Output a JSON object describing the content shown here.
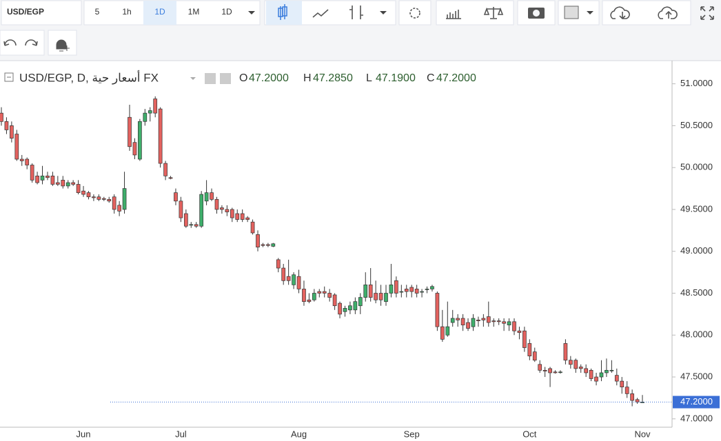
{
  "toolbar": {
    "symbol": "USD/EGP",
    "intervals": [
      "5",
      "1h",
      "1D",
      "1M"
    ],
    "interval_menu": "1D"
  },
  "chart_data": {
    "type": "candlestick",
    "title": "USD/EGP, D, أسعار حية FX",
    "legend": [
      {
        "key": "O",
        "value": "47.2000"
      },
      {
        "key": "H",
        "value": "47.2850"
      },
      {
        "key": "L",
        "value": "47.1900"
      },
      {
        "key": "C",
        "value": "47.2000"
      }
    ],
    "up_color": "#3fae6b",
    "down_color": "#e3625f",
    "grid": false,
    "ylim": [
      46.9,
      51.26
    ],
    "yticks": [
      {
        "value": 47,
        "label": "47.0000"
      },
      {
        "value": 47.5,
        "label": "47.5000"
      },
      {
        "value": 48,
        "label": "48.0000"
      },
      {
        "value": 48.5,
        "label": "48.5000"
      },
      {
        "value": 49,
        "label": "49.0000"
      },
      {
        "value": 49.5,
        "label": "49.5000"
      },
      {
        "value": 50,
        "label": "50.0000"
      },
      {
        "value": 50.5,
        "label": "50.5000"
      },
      {
        "value": 51,
        "label": "51.0000"
      }
    ],
    "last": {
      "value": 47.2,
      "label": "47.2000"
    },
    "categories": [
      null,
      null,
      null,
      null,
      null,
      null,
      null,
      null,
      null,
      null,
      null,
      null,
      null,
      null,
      null,
      null,
      "Jun",
      null,
      null,
      null,
      null,
      null,
      null,
      null,
      null,
      null,
      null,
      null,
      null,
      null,
      null,
      null,
      null,
      null,
      null,
      "Jul",
      null,
      null,
      null,
      null,
      null,
      null,
      null,
      null,
      null,
      null,
      null,
      null,
      null,
      null,
      null,
      null,
      null,
      null,
      null,
      null,
      null,
      null,
      "Aug",
      null,
      null,
      null,
      null,
      null,
      null,
      null,
      null,
      null,
      null,
      null,
      null,
      null,
      null,
      null,
      null,
      null,
      null,
      null,
      null,
      null,
      "Sep",
      null,
      null,
      null,
      null,
      null,
      null,
      null,
      null,
      null,
      null,
      null,
      null,
      null,
      null,
      null,
      null,
      null,
      null,
      null,
      null,
      null,
      null,
      "Oct",
      null,
      null,
      null,
      null,
      null,
      null,
      null,
      null,
      null,
      null,
      null,
      null,
      null,
      null,
      null,
      null,
      null,
      null,
      null,
      null,
      null,
      "Nov"
    ],
    "ohlc": [
      [
        50.65,
        50.72,
        50.5,
        50.55
      ],
      [
        50.55,
        50.6,
        50.4,
        50.45
      ],
      [
        50.5,
        50.55,
        50.3,
        50.35
      ],
      [
        50.4,
        50.45,
        50.08,
        50.1
      ],
      [
        50.1,
        50.15,
        50.02,
        50.08
      ],
      [
        50.1,
        50.12,
        49.98,
        50.03
      ],
      [
        50.03,
        50.05,
        49.82,
        49.85
      ],
      [
        49.9,
        49.95,
        49.8,
        49.82
      ],
      [
        49.85,
        50.02,
        49.8,
        49.9
      ],
      [
        49.9,
        49.95,
        49.85,
        49.88
      ],
      [
        49.9,
        49.95,
        49.78,
        49.8
      ],
      [
        49.82,
        49.9,
        49.78,
        49.8
      ],
      [
        49.85,
        49.9,
        49.75,
        49.78
      ],
      [
        49.78,
        49.85,
        49.75,
        49.82
      ],
      [
        49.82,
        49.85,
        49.78,
        49.8
      ],
      [
        49.8,
        49.85,
        49.68,
        49.7
      ],
      [
        49.72,
        49.78,
        49.65,
        49.68
      ],
      [
        49.7,
        49.72,
        49.62,
        49.65
      ],
      [
        49.65,
        49.68,
        49.6,
        49.64
      ],
      [
        49.65,
        49.68,
        49.6,
        49.62
      ],
      [
        49.63,
        49.65,
        49.6,
        49.62
      ],
      [
        49.62,
        49.65,
        49.58,
        49.6
      ],
      [
        49.65,
        49.68,
        49.45,
        49.5
      ],
      [
        49.55,
        49.6,
        49.42,
        49.48
      ],
      [
        49.5,
        49.95,
        49.45,
        49.75
      ],
      [
        50.6,
        50.75,
        50.2,
        50.25
      ],
      [
        50.3,
        50.35,
        50.1,
        50.15
      ],
      [
        50.1,
        50.58,
        50.08,
        50.55
      ],
      [
        50.55,
        50.7,
        50.5,
        50.65
      ],
      [
        50.65,
        50.72,
        50.55,
        50.68
      ],
      [
        50.82,
        50.85,
        50.6,
        50.65
      ],
      [
        50.7,
        50.72,
        50.0,
        50.05
      ],
      [
        50.05,
        50.08,
        49.85,
        49.9
      ],
      [
        49.88,
        49.9,
        49.86,
        49.87
      ],
      [
        49.7,
        49.75,
        49.55,
        49.6
      ],
      [
        49.6,
        49.65,
        49.35,
        49.4
      ],
      [
        49.45,
        49.5,
        49.28,
        49.3
      ],
      [
        49.32,
        49.35,
        49.28,
        49.32
      ],
      [
        49.32,
        49.35,
        49.28,
        49.3
      ],
      [
        49.3,
        49.72,
        49.28,
        49.68
      ],
      [
        49.6,
        49.85,
        49.55,
        49.7
      ],
      [
        49.7,
        49.75,
        49.6,
        49.62
      ],
      [
        49.62,
        49.65,
        49.45,
        49.5
      ],
      [
        49.52,
        49.55,
        49.45,
        49.5
      ],
      [
        49.5,
        49.55,
        49.42,
        49.47
      ],
      [
        49.5,
        49.52,
        49.35,
        49.4
      ],
      [
        49.45,
        49.5,
        49.35,
        49.38
      ],
      [
        49.45,
        49.5,
        49.35,
        49.38
      ],
      [
        49.4,
        49.42,
        49.35,
        49.38
      ],
      [
        49.35,
        49.38,
        49.2,
        49.22
      ],
      [
        49.2,
        49.25,
        49.0,
        49.05
      ],
      [
        49.08,
        49.1,
        49.05,
        49.07
      ],
      [
        49.08,
        49.1,
        49.05,
        49.07
      ],
      [
        49.06,
        49.1,
        49.05,
        49.09
      ],
      [
        48.9,
        48.92,
        48.75,
        48.8
      ],
      [
        48.8,
        48.85,
        48.6,
        48.65
      ],
      [
        48.7,
        48.9,
        48.6,
        48.65
      ],
      [
        48.6,
        48.75,
        48.55,
        48.72
      ],
      [
        48.7,
        48.78,
        48.5,
        48.55
      ],
      [
        48.55,
        48.65,
        48.35,
        48.4
      ],
      [
        48.42,
        48.5,
        48.38,
        48.4
      ],
      [
        48.42,
        48.55,
        48.4,
        48.5
      ],
      [
        48.52,
        48.55,
        48.45,
        48.5
      ],
      [
        48.52,
        48.58,
        48.45,
        48.5
      ],
      [
        48.5,
        48.55,
        48.4,
        48.45
      ],
      [
        48.48,
        48.5,
        48.3,
        48.35
      ],
      [
        48.38,
        48.4,
        48.2,
        48.25
      ],
      [
        48.28,
        48.35,
        48.22,
        48.32
      ],
      [
        48.3,
        48.4,
        48.25,
        48.35
      ],
      [
        48.3,
        48.45,
        48.25,
        48.4
      ],
      [
        48.35,
        48.5,
        48.25,
        48.45
      ],
      [
        48.45,
        48.75,
        48.4,
        48.6
      ],
      [
        48.6,
        48.8,
        48.4,
        48.45
      ],
      [
        48.5,
        48.65,
        48.38,
        48.42
      ],
      [
        48.5,
        48.6,
        48.35,
        48.42
      ],
      [
        48.4,
        48.6,
        48.35,
        48.5
      ],
      [
        48.5,
        48.85,
        48.45,
        48.6
      ],
      [
        48.65,
        48.7,
        48.45,
        48.5
      ],
      [
        48.52,
        48.6,
        48.45,
        48.52
      ],
      [
        48.55,
        48.6,
        48.45,
        48.52
      ],
      [
        48.57,
        48.6,
        48.45,
        48.52
      ],
      [
        48.55,
        48.6,
        48.45,
        48.5
      ],
      [
        48.52,
        48.55,
        48.45,
        48.52
      ],
      [
        48.55,
        48.58,
        48.5,
        48.55
      ],
      [
        48.55,
        48.6,
        48.52,
        48.58
      ],
      [
        48.5,
        48.52,
        48.05,
        48.1
      ],
      [
        48.1,
        48.3,
        47.92,
        47.95
      ],
      [
        48.0,
        48.4,
        47.98,
        48.1
      ],
      [
        48.15,
        48.3,
        48.1,
        48.2
      ],
      [
        48.2,
        48.25,
        48.1,
        48.18
      ],
      [
        48.2,
        48.25,
        48.05,
        48.12
      ],
      [
        48.15,
        48.2,
        48.05,
        48.08
      ],
      [
        48.1,
        48.25,
        48.05,
        48.2
      ],
      [
        48.18,
        48.22,
        48.1,
        48.17
      ],
      [
        48.2,
        48.25,
        48.1,
        48.18
      ],
      [
        48.22,
        48.4,
        48.1,
        48.15
      ],
      [
        48.17,
        48.2,
        48.1,
        48.16
      ],
      [
        48.17,
        48.2,
        48.12,
        48.16
      ],
      [
        48.16,
        48.2,
        48.05,
        48.14
      ],
      [
        48.12,
        48.2,
        48.05,
        48.16
      ],
      [
        48.16,
        48.2,
        48.0,
        48.05
      ],
      [
        48.05,
        48.1,
        47.95,
        48.03
      ],
      [
        48.05,
        48.1,
        47.8,
        47.85
      ],
      [
        47.9,
        47.95,
        47.7,
        47.75
      ],
      [
        47.8,
        47.85,
        47.68,
        47.7
      ],
      [
        47.65,
        47.7,
        47.55,
        47.58
      ],
      [
        47.58,
        47.62,
        47.5,
        47.57
      ],
      [
        47.6,
        47.62,
        47.38,
        47.55
      ],
      [
        47.56,
        47.58,
        47.54,
        47.55
      ],
      [
        47.56,
        47.58,
        47.54,
        47.56
      ],
      [
        47.9,
        47.95,
        47.65,
        47.7
      ],
      [
        47.7,
        47.75,
        47.6,
        47.65
      ],
      [
        47.7,
        47.72,
        47.55,
        47.6
      ],
      [
        47.62,
        47.65,
        47.55,
        47.6
      ],
      [
        47.6,
        47.65,
        47.5,
        47.55
      ],
      [
        47.58,
        47.6,
        47.45,
        47.48
      ],
      [
        47.5,
        47.55,
        47.4,
        47.45
      ],
      [
        47.5,
        47.7,
        47.45,
        47.55
      ],
      [
        47.55,
        47.72,
        47.5,
        47.58
      ],
      [
        47.58,
        47.7,
        47.55,
        47.58
      ],
      [
        47.52,
        47.6,
        47.4,
        47.45
      ],
      [
        47.45,
        47.5,
        47.3,
        47.38
      ],
      [
        47.38,
        47.45,
        47.25,
        47.3
      ],
      [
        47.3,
        47.35,
        47.15,
        47.22
      ],
      [
        47.23,
        47.25,
        47.18,
        47.2
      ],
      [
        47.2,
        47.285,
        47.19,
        47.2
      ]
    ]
  }
}
